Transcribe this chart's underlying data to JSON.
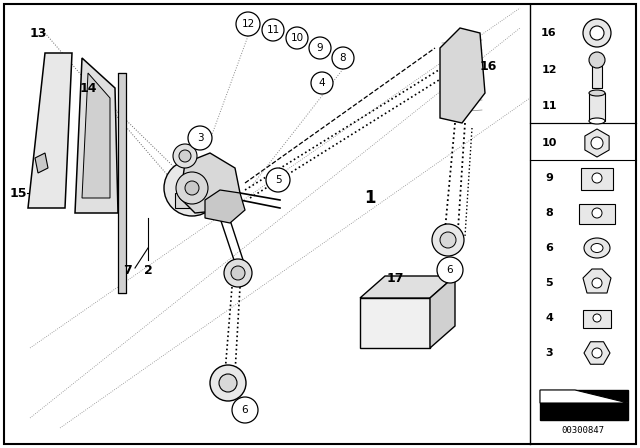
{
  "bg_color": "#ffffff",
  "border_color": "#000000",
  "part_number": "00300847",
  "fig_width": 6.4,
  "fig_height": 4.48,
  "dpi": 100
}
